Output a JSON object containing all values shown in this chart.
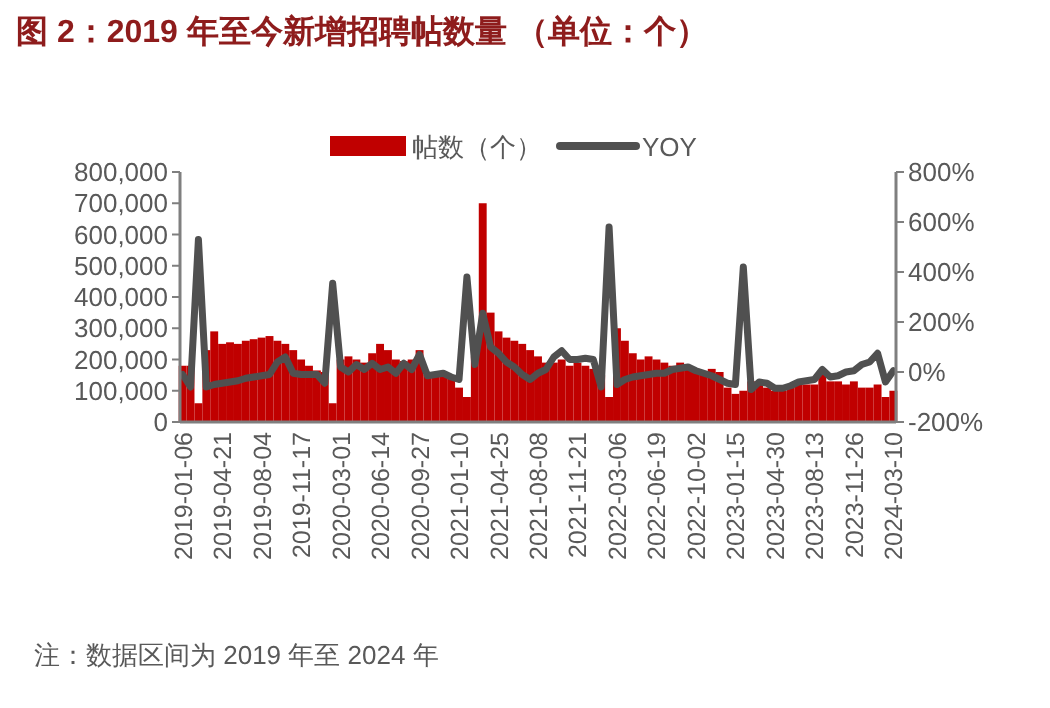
{
  "chart_data": {
    "type": "bar",
    "title": "图 2：2019 年至今新增招聘帖数量 （单位：个）",
    "annotations": [
      "注：数据区间为 2019 年至 2024 年"
    ],
    "legend": "top",
    "x": [
      "2019-01-06",
      "2019-01-27",
      "2019-02-17",
      "2019-03-10",
      "2019-03-31",
      "2019-04-21",
      "2019-05-12",
      "2019-06-02",
      "2019-06-23",
      "2019-07-14",
      "2019-08-04",
      "2019-08-25",
      "2019-09-15",
      "2019-10-06",
      "2019-10-27",
      "2019-11-17",
      "2019-12-08",
      "2019-12-29",
      "2020-01-19",
      "2020-02-09",
      "2020-03-01",
      "2020-03-22",
      "2020-04-12",
      "2020-05-03",
      "2020-05-24",
      "2020-06-14",
      "2020-07-05",
      "2020-07-26",
      "2020-08-16",
      "2020-09-06",
      "2020-09-27",
      "2020-10-18",
      "2020-11-08",
      "2020-11-29",
      "2020-12-20",
      "2021-01-10",
      "2021-01-31",
      "2021-02-21",
      "2021-03-14",
      "2021-04-04",
      "2021-04-25",
      "2021-05-16",
      "2021-06-06",
      "2021-06-27",
      "2021-07-18",
      "2021-08-08",
      "2021-08-29",
      "2021-09-19",
      "2021-10-10",
      "2021-10-31",
      "2021-11-21",
      "2021-12-12",
      "2022-01-02",
      "2022-01-23",
      "2022-02-13",
      "2022-03-06",
      "2022-03-27",
      "2022-04-17",
      "2022-05-08",
      "2022-05-29",
      "2022-06-19",
      "2022-07-10",
      "2022-07-31",
      "2022-08-21",
      "2022-09-11",
      "2022-10-02",
      "2022-10-23",
      "2022-11-13",
      "2022-12-04",
      "2022-12-25",
      "2023-01-15",
      "2023-02-05",
      "2023-02-26",
      "2023-03-19",
      "2023-04-09",
      "2023-04-30",
      "2023-05-21",
      "2023-06-11",
      "2023-07-02",
      "2023-07-23",
      "2023-08-13",
      "2023-09-03",
      "2023-09-24",
      "2023-10-15",
      "2023-11-05",
      "2023-11-26",
      "2023-12-17",
      "2024-01-07",
      "2024-01-28",
      "2024-02-18",
      "2024-03-10"
    ],
    "series": [
      {
        "name": "帖数（个）",
        "color": "#c00000",
        "values": [
          180000,
          180000,
          60000,
          230000,
          290000,
          250000,
          255000,
          250000,
          260000,
          265000,
          270000,
          275000,
          260000,
          250000,
          230000,
          200000,
          180000,
          165000,
          160000,
          60000,
          200000,
          210000,
          200000,
          190000,
          220000,
          250000,
          230000,
          200000,
          195000,
          200000,
          230000,
          150000,
          150000,
          150000,
          140000,
          110000,
          80000,
          210000,
          700000,
          350000,
          290000,
          270000,
          260000,
          250000,
          230000,
          210000,
          190000,
          190000,
          200000,
          180000,
          190000,
          180000,
          170000,
          150000,
          80000,
          300000,
          260000,
          220000,
          200000,
          210000,
          200000,
          190000,
          180000,
          190000,
          180000,
          170000,
          160000,
          170000,
          160000,
          110000,
          90000,
          100000,
          130000,
          120000,
          110000,
          100000,
          100000,
          110000,
          120000,
          120000,
          120000,
          160000,
          130000,
          130000,
          120000,
          130000,
          110000,
          110000,
          120000,
          80000,
          100000
        ]
      },
      {
        "name": "YOY",
        "type": "line",
        "axis": "y2",
        "color": "#505050",
        "values": [
          -10,
          -60,
          530,
          -60,
          -50,
          -45,
          -40,
          -35,
          -25,
          -20,
          -15,
          -10,
          40,
          60,
          -5,
          -10,
          -10,
          -10,
          -45,
          355,
          20,
          0,
          30,
          10,
          35,
          10,
          20,
          -5,
          35,
          10,
          70,
          -15,
          -10,
          -5,
          -20,
          -30,
          380,
          30,
          235,
          100,
          75,
          40,
          20,
          -10,
          -30,
          -5,
          10,
          60,
          85,
          50,
          50,
          55,
          50,
          -60,
          580,
          -50,
          -30,
          -20,
          -15,
          -10,
          -5,
          -5,
          10,
          15,
          20,
          5,
          -5,
          -15,
          -30,
          -45,
          -50,
          420,
          -70,
          -40,
          -45,
          -65,
          -65,
          -55,
          -40,
          -35,
          -30,
          10,
          -20,
          -15,
          0,
          5,
          30,
          40,
          75,
          -40,
          5
        ]
      }
    ],
    "xlim": [
      "2018-12-30",
      "2024-03-17"
    ],
    "xticks": [
      "2019-01-06",
      "2019-04-21",
      "2019-08-04",
      "2019-11-17",
      "2020-03-01",
      "2020-06-14",
      "2020-09-27",
      "2021-01-10",
      "2021-04-25",
      "2021-08-08",
      "2021-11-21",
      "2022-03-06",
      "2022-06-19",
      "2022-10-02",
      "2023-01-15",
      "2023-04-30",
      "2023-08-13",
      "2023-11-26",
      "2024-03-10"
    ],
    "ylim": [
      0,
      800000
    ],
    "yticks": [
      0,
      {
        "value": 100000,
        "label": "100,000"
      },
      {
        "value": 200000,
        "label": "200,000"
      },
      {
        "value": 300000,
        "label": "300,000"
      },
      {
        "value": 400000,
        "label": "400,000"
      },
      {
        "value": 500000,
        "label": "500,000"
      },
      {
        "value": 600000,
        "label": "600,000"
      },
      {
        "value": 700000,
        "label": "700,000"
      },
      {
        "value": 800000,
        "label": "800,000"
      }
    ],
    "y2lim": [
      -200,
      800
    ],
    "y2ticks": [
      {
        "value": -200,
        "label": "-200%"
      },
      {
        "value": 0,
        "label": "0%"
      },
      {
        "value": 200,
        "label": "200%"
      },
      {
        "value": 400,
        "label": "400%"
      },
      {
        "value": 600,
        "label": "600%"
      },
      {
        "value": 800,
        "label": "800%"
      }
    ]
  }
}
